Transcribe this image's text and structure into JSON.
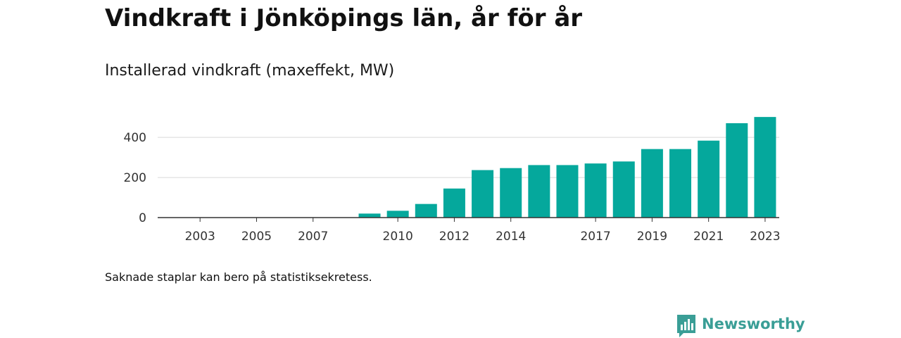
{
  "header": {
    "title": "Vindkraft i Jönköpings län, år för år",
    "subtitle": "Installerad vindkraft (maxeffekt, MW)"
  },
  "footer": {
    "note": "Saknade staplar kan bero på statistiksekretess.",
    "brand_name": "Newsworthy",
    "brand_icon": "bar-chart-speech-bubble-icon"
  },
  "colors": {
    "bar": "#05a89c",
    "brand": "#3a9e96",
    "grid": "#d9d9d9",
    "axis": "#333333",
    "text": "#333333"
  },
  "chart_data": {
    "type": "bar",
    "title": "Vindkraft i Jönköpings län, år för år",
    "subtitle": "Installerad vindkraft (maxeffekt, MW)",
    "categories": [
      "2002",
      "2003",
      "2004",
      "2005",
      "2006",
      "2007",
      "2008",
      "2009",
      "2010",
      "2011",
      "2012",
      "2013",
      "2014",
      "2015",
      "2016",
      "2017",
      "2018",
      "2019",
      "2020",
      "2021",
      "2022",
      "2023"
    ],
    "values": [
      0,
      0,
      0,
      0,
      0,
      0,
      0,
      20,
      34,
      68,
      145,
      237,
      247,
      262,
      262,
      270,
      280,
      342,
      342,
      384,
      471,
      502
    ],
    "xticks": [
      "2003",
      "2005",
      "2007",
      "2010",
      "2012",
      "2014",
      "2017",
      "2019",
      "2021",
      "2023"
    ],
    "yticks": [
      0,
      200,
      400
    ],
    "ylim": [
      0,
      520
    ],
    "xlabel": "",
    "ylabel": "",
    "grid": true,
    "legend": "none"
  }
}
